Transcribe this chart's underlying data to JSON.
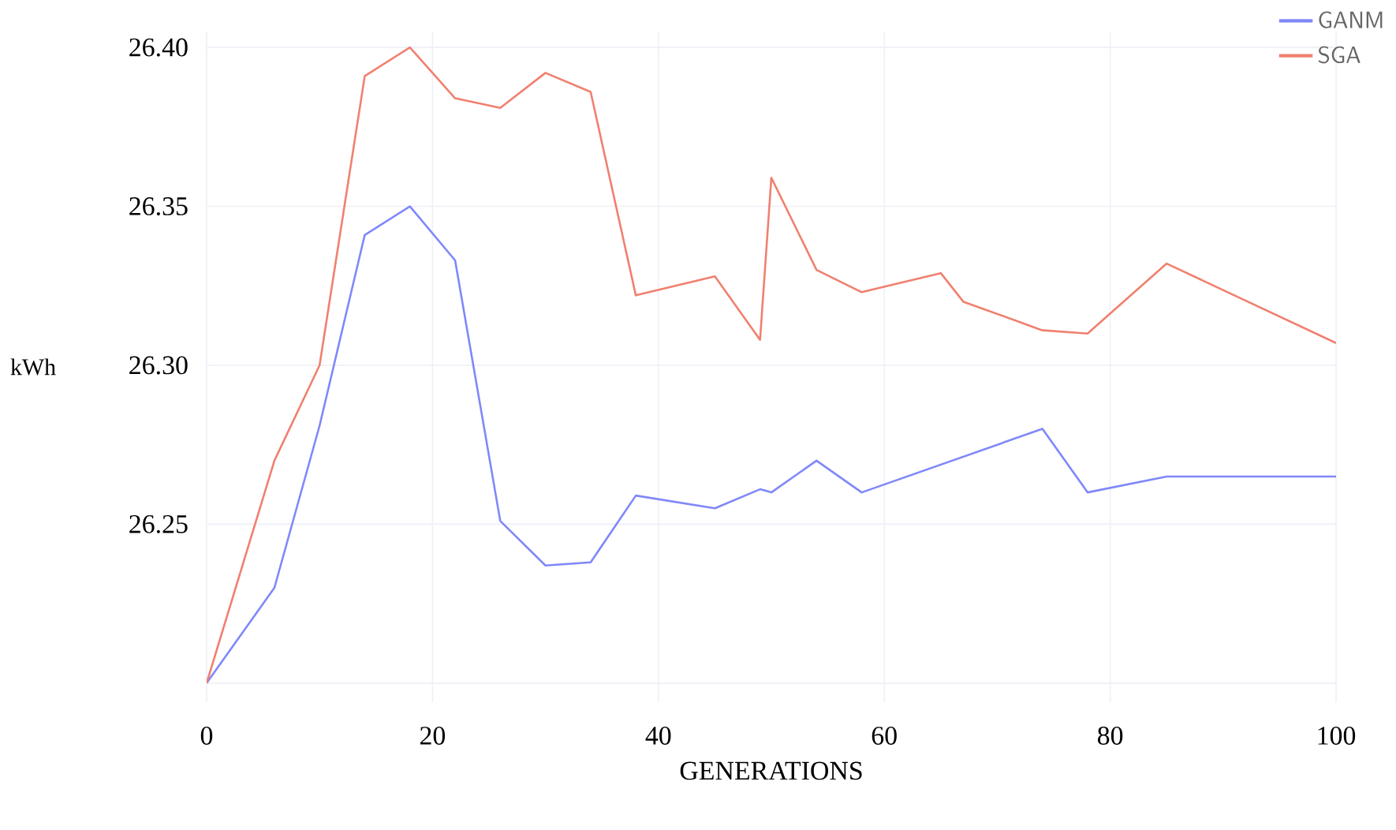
{
  "chart_data": {
    "type": "line",
    "xlabel": "GENERATIONS",
    "ylabel": "kWh",
    "xlim": [
      0,
      100
    ],
    "xticks": [
      0,
      20,
      40,
      60,
      80,
      100
    ],
    "ylim": [
      26.194,
      26.405
    ],
    "yticks": [
      {
        "value": 26.2,
        "label": null
      },
      26.25,
      {
        "value": 26.3,
        "label": "26.30"
      },
      26.35,
      {
        "value": 26.4,
        "label": "26.40"
      }
    ],
    "grid": true,
    "legend": "top right",
    "line_style": "solid",
    "marker": "none",
    "series": [
      {
        "name": "GANM",
        "color": "#7f88f9",
        "x": [
          0,
          6,
          10,
          14,
          18,
          22,
          26,
          30,
          34,
          38,
          45,
          49,
          50,
          54,
          58,
          74,
          78,
          85,
          100
        ],
        "values": [
          26.2,
          26.23,
          26.281,
          26.341,
          26.35,
          26.333,
          26.251,
          26.237,
          26.238,
          26.259,
          26.255,
          26.261,
          26.26,
          26.27,
          26.26,
          26.28,
          26.26,
          26.265,
          26.265
        ]
      },
      {
        "name": "SGA",
        "color": "#f0806f",
        "x": [
          0,
          6,
          10,
          14,
          18,
          22,
          26,
          30,
          34,
          38,
          45,
          49,
          50,
          54,
          58,
          65,
          67,
          74,
          78,
          85,
          100
        ],
        "values": [
          26.2,
          26.27,
          26.3,
          26.391,
          26.4,
          26.384,
          26.381,
          26.392,
          26.386,
          26.322,
          26.328,
          26.308,
          26.359,
          26.33,
          26.323,
          26.329,
          26.32,
          26.311,
          26.31,
          26.332,
          26.307
        ]
      }
    ]
  }
}
